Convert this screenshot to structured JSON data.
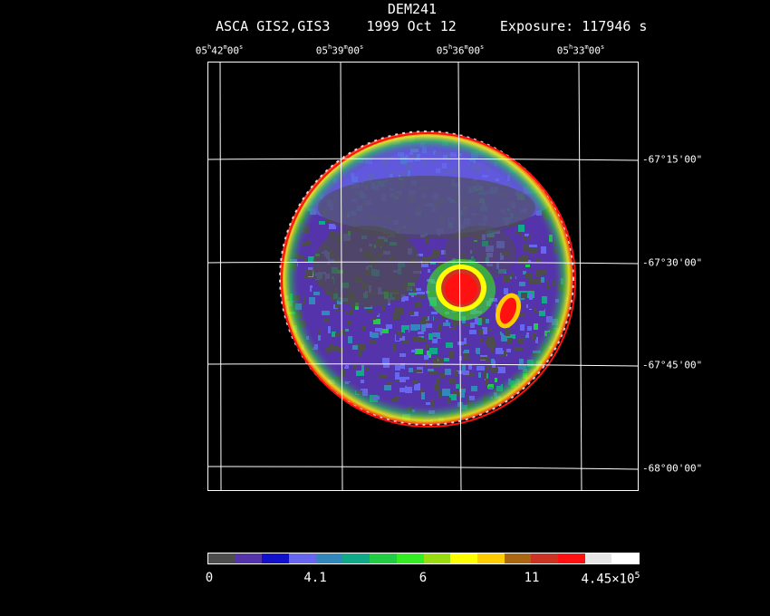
{
  "header": {
    "object": "DEM241",
    "instrument": "ASCA GIS2,GIS3",
    "date": "1999 Oct 12",
    "exposure_label": "Exposure:",
    "exposure_value": "117946 s"
  },
  "ra_labels": [
    {
      "h": "05",
      "m": "42",
      "s": "00"
    },
    {
      "h": "05",
      "m": "39",
      "s": "00"
    },
    {
      "h": "05",
      "m": "36",
      "s": "00"
    },
    {
      "h": "05",
      "m": "33",
      "s": "00"
    }
  ],
  "ra_units": {
    "h": "h",
    "m": "m",
    "s": "s"
  },
  "dec_labels": [
    "-67°15'00\"",
    "-67°30'00\"",
    "-67°45'00\"",
    "-68°00'00\""
  ],
  "colorbar": {
    "colors": [
      "#4d4d4d",
      "#5533aa",
      "#1111cc",
      "#6666ee",
      "#3388bb",
      "#11aa88",
      "#22cc44",
      "#33ee22",
      "#99dd11",
      "#ffff00",
      "#ffcc00",
      "#aa6611",
      "#cc3322",
      "#ff1111",
      "#e6e6e6",
      "#ffffff"
    ],
    "ticks": [
      "0",
      "4.1",
      "6",
      "11"
    ],
    "max_label_mantissa": "4.45×10",
    "max_label_exp": "5"
  }
}
